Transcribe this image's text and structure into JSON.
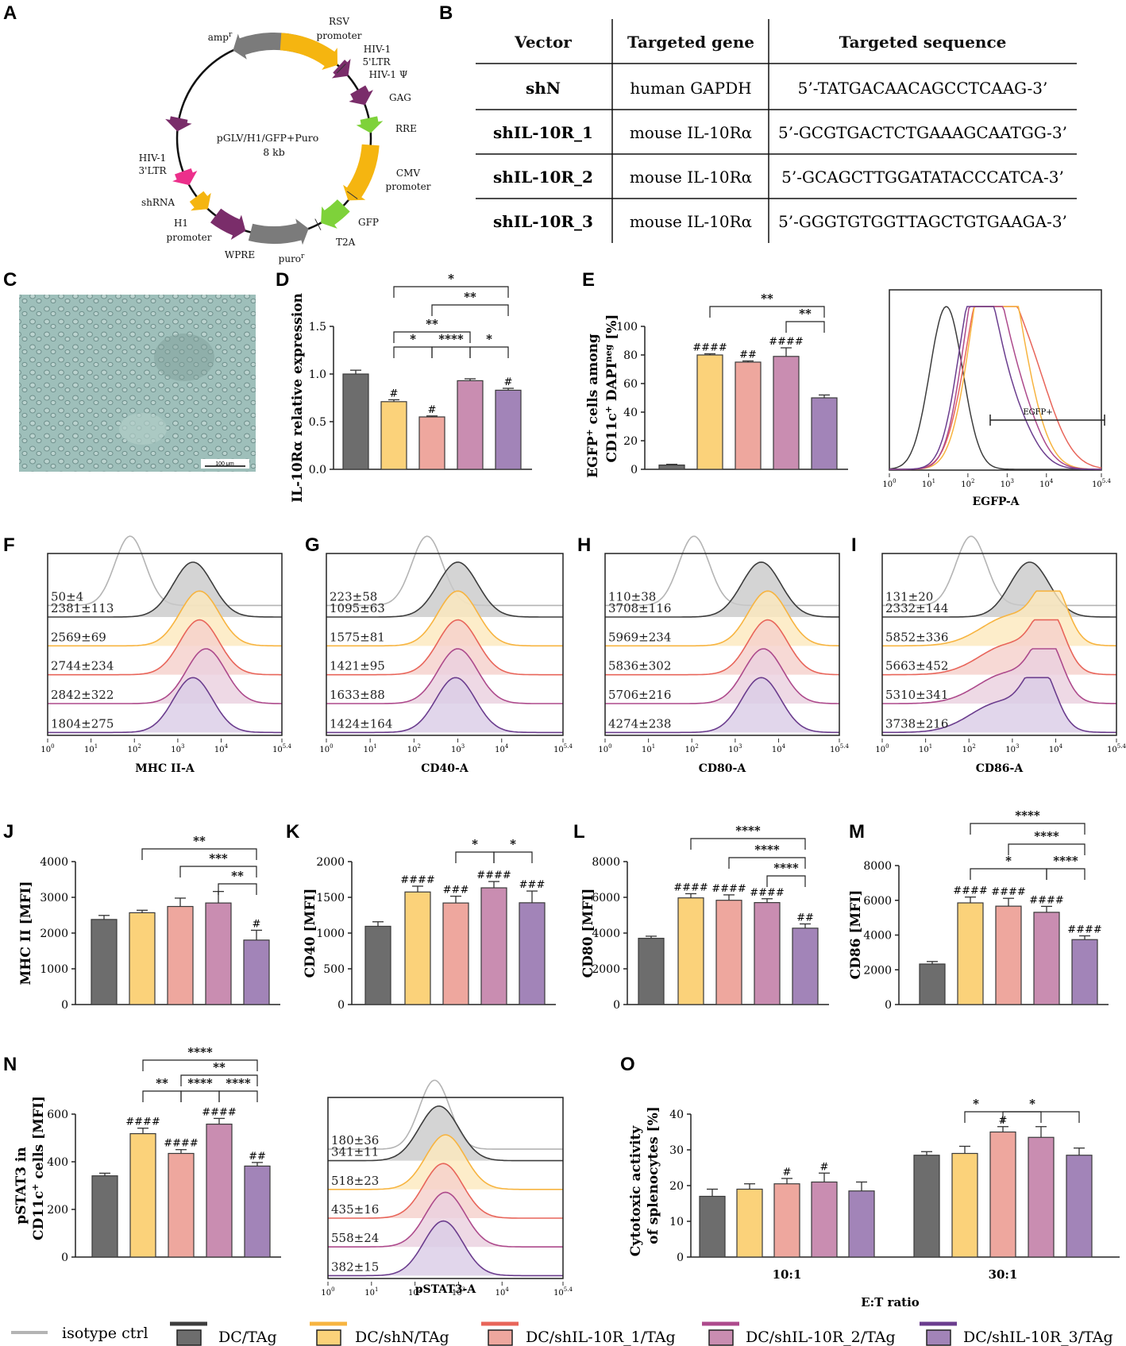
{
  "colors": {
    "g0": "#6d6d6d",
    "g1": "#fbd27a",
    "g2": "#eea79e",
    "g3": "#c98db1",
    "g4": "#a284b8",
    "l0": "#3d3d3d",
    "l1": "#f7b440",
    "l2": "#e8655a",
    "l3": "#ad4a8c",
    "l4": "#6b3d8e",
    "iso": "#b4b4b4"
  },
  "panel_letters": [
    "A",
    "B",
    "C",
    "D",
    "E",
    "F",
    "G",
    "H",
    "I",
    "J",
    "K",
    "L",
    "M",
    "N",
    "O"
  ],
  "plasmid": {
    "center_line1": "pGLV/H1/GFP+Puro",
    "center_line2": "8 kb",
    "features": [
      {
        "label": "amp",
        "sup": "r"
      },
      {
        "label": "RSV",
        "label2": "promoter"
      },
      {
        "label": "HIV-1",
        "label2": "5'LTR"
      },
      {
        "label": "HIV-1 Ψ"
      },
      {
        "label": "GAG"
      },
      {
        "label": "RRE"
      },
      {
        "label": "CMV",
        "label2": "promoter"
      },
      {
        "label": "GFP"
      },
      {
        "label": "T2A"
      },
      {
        "label": "puro",
        "sup": "r"
      },
      {
        "label": "WPRE"
      },
      {
        "label": "H1",
        "label2": "promoter"
      },
      {
        "label": "shRNA"
      },
      {
        "label": "HIV-1",
        "label2": "3'LTR"
      }
    ]
  },
  "table": {
    "headers": [
      "Vector",
      "Targeted gene",
      "Targeted sequence"
    ],
    "rows": [
      [
        "shN",
        "human GAPDH",
        "5’-TATGACAACAGCCTCAAG-3’"
      ],
      [
        "shIL-10R_1",
        "mouse IL-10Rα",
        "5’-GCGTGACTCTGAAAGCAATGG-3’"
      ],
      [
        "shIL-10R_2",
        "mouse IL-10Rα",
        "5’-GCAGCTTGGATATACCCATCA-3’"
      ],
      [
        "shIL-10R_3",
        "mouse IL-10Rα",
        "5’-GGGTGTGGTTAGCTGTGAAGA-3’"
      ]
    ]
  },
  "micrograph": {
    "scale_bar": "100 μm"
  },
  "flow_axis_ticks": [
    "10",
    "0",
    "10",
    "1",
    "10",
    "2",
    "10",
    "3",
    "10",
    "4",
    "10",
    "5.4"
  ],
  "egfp_gate": "EGFP+",
  "egfp_xlabel": "EGFP-A",
  "histograms": [
    {
      "xlabel": "MHC II-A",
      "labels": [
        "50±4",
        "2381±113",
        "2569±69",
        "2744±234",
        "2842±322",
        "1804±275"
      ]
    },
    {
      "xlabel": "CD40-A",
      "labels": [
        "223±58",
        "1095±63",
        "1575±81",
        "1421±95",
        "1633±88",
        "1424±164"
      ]
    },
    {
      "xlabel": "CD80-A",
      "labels": [
        "110±38",
        "3708±116",
        "5969±234",
        "5836±302",
        "5706±216",
        "4274±238"
      ]
    },
    {
      "xlabel": "CD86-A",
      "labels": [
        "131±20",
        "2332±144",
        "5852±336",
        "5663±452",
        "5310±341",
        "3738±216"
      ]
    },
    {
      "xlabel": "pSTAT3-A",
      "labels": [
        "180±36",
        "341±11",
        "518±23",
        "435±16",
        "558±24",
        "382±15"
      ]
    }
  ],
  "legend": {
    "items": [
      "isotype ctrl",
      "DC/TAg",
      "DC/shN/TAg",
      "DC/shIL-10R_1/TAg",
      "DC/shIL-10R_2/TAg",
      "DC/shIL-10R_3/TAg"
    ]
  },
  "chart_data": [
    {
      "panel": "D",
      "type": "bar",
      "ylabel": "IL-10Rα relative expression",
      "ylim": [
        0,
        1.5
      ],
      "ticks": [
        "0.0",
        "0.5",
        "1.0",
        "1.5"
      ],
      "categories": [
        "DC/TAg",
        "DC/shN/TAg",
        "DC/shIL-10R_1/TAg",
        "DC/shIL-10R_2/TAg",
        "DC/shIL-10R_3/TAg"
      ],
      "values": [
        1.0,
        0.71,
        0.55,
        0.93,
        0.83
      ],
      "errors": [
        0.04,
        0.02,
        0.01,
        0.02,
        0.02
      ],
      "marks": [
        "",
        "#",
        "#",
        "",
        "#"
      ],
      "brackets": [
        {
          "from": 1,
          "to": 4,
          "label": "*"
        },
        {
          "from": 2,
          "to": 4,
          "label": "**"
        },
        {
          "from": 1,
          "to": 3,
          "label": "**"
        },
        {
          "from": 1,
          "to": 2,
          "label": "*"
        },
        {
          "from": 2,
          "to": 3,
          "label": "****"
        },
        {
          "from": 3,
          "to": 4,
          "label": "*"
        }
      ]
    },
    {
      "panel": "E",
      "type": "bar",
      "ylabel": "EGFP+ cells among CD11c+ DAPIneg [%]",
      "ylim": [
        0,
        100
      ],
      "ticks": [
        "0",
        "20",
        "40",
        "60",
        "80",
        "100"
      ],
      "values": [
        3,
        80,
        75,
        79,
        50
      ],
      "errors": [
        0.5,
        0.8,
        0.8,
        6,
        2
      ],
      "marks": [
        "",
        "####",
        "##",
        "####",
        ""
      ],
      "brackets": [
        {
          "from": 1,
          "to": 4,
          "label": "**"
        },
        {
          "from": 3,
          "to": 4,
          "label": "**"
        }
      ]
    },
    {
      "panel": "J",
      "type": "bar",
      "ylabel": "MHC II [MFI]",
      "ylim": [
        0,
        4000
      ],
      "ticks": [
        "0",
        "1000",
        "2000",
        "3000",
        "4000"
      ],
      "values": [
        2381,
        2569,
        2744,
        2842,
        1804
      ],
      "errors": [
        113,
        69,
        234,
        322,
        275
      ],
      "marks": [
        "",
        "",
        "",
        "",
        "#"
      ],
      "brackets": [
        {
          "from": 1,
          "to": 4,
          "label": "**"
        },
        {
          "from": 2,
          "to": 4,
          "label": "***"
        },
        {
          "from": 3,
          "to": 4,
          "label": "**"
        }
      ]
    },
    {
      "panel": "K",
      "type": "bar",
      "ylabel": "CD40 [MFI]",
      "ylim": [
        0,
        2000
      ],
      "ticks": [
        "0",
        "500",
        "1000",
        "1500",
        "2000"
      ],
      "values": [
        1095,
        1575,
        1421,
        1633,
        1424
      ],
      "errors": [
        63,
        81,
        95,
        88,
        164
      ],
      "marks": [
        "",
        "####",
        "###",
        "####",
        "###"
      ],
      "brackets": [
        {
          "from": 2,
          "to": 3,
          "label": "*"
        },
        {
          "from": 3,
          "to": 4,
          "label": "*"
        }
      ]
    },
    {
      "panel": "L",
      "type": "bar",
      "ylabel": "CD80 [MFI]",
      "ylim": [
        0,
        8000
      ],
      "ticks": [
        "0",
        "2000",
        "4000",
        "6000",
        "8000"
      ],
      "values": [
        3708,
        5969,
        5836,
        5706,
        4274
      ],
      "errors": [
        116,
        234,
        302,
        216,
        238
      ],
      "marks": [
        "",
        "####",
        "####",
        "####",
        "##"
      ],
      "brackets": [
        {
          "from": 1,
          "to": 4,
          "label": "****"
        },
        {
          "from": 2,
          "to": 4,
          "label": "****"
        },
        {
          "from": 3,
          "to": 4,
          "label": "****"
        }
      ]
    },
    {
      "panel": "M",
      "type": "bar",
      "ylabel": "CD86 [MFI]",
      "ylim": [
        0,
        8000
      ],
      "ticks": [
        "0",
        "2000",
        "4000",
        "6000",
        "8000"
      ],
      "values": [
        2332,
        5852,
        5663,
        5310,
        3738
      ],
      "errors": [
        144,
        336,
        452,
        341,
        216
      ],
      "marks": [
        "",
        "####",
        "####",
        "####",
        "####"
      ],
      "brackets": [
        {
          "from": 1,
          "to": 4,
          "label": "****"
        },
        {
          "from": 2,
          "to": 4,
          "label": "****"
        },
        {
          "from": 1,
          "to": 3,
          "label": "*"
        },
        {
          "from": 3,
          "to": 4,
          "label": "****"
        }
      ]
    },
    {
      "panel": "N",
      "type": "bar",
      "ylabel": "pSTAT3 in CD11c+ cells [MFI]",
      "ylim": [
        0,
        600
      ],
      "ticks": [
        "0",
        "200",
        "400",
        "600"
      ],
      "values": [
        341,
        518,
        435,
        558,
        382
      ],
      "errors": [
        11,
        23,
        16,
        24,
        15
      ],
      "marks": [
        "",
        "####",
        "####",
        "####",
        "##"
      ],
      "brackets": [
        {
          "from": 1,
          "to": 4,
          "label": "****"
        },
        {
          "from": 2,
          "to": 4,
          "label": "**"
        },
        {
          "from": 1,
          "to": 2,
          "label": "**"
        },
        {
          "from": 2,
          "to": 3,
          "label": "****"
        },
        {
          "from": 3,
          "to": 4,
          "label": "****"
        }
      ]
    },
    {
      "panel": "O",
      "type": "grouped-bar",
      "ylabel": "Cytotoxic activity of splenocytes [%]",
      "xlabel": "E:T ratio",
      "ylim": [
        0,
        40
      ],
      "ticks": [
        "0",
        "10",
        "20",
        "30",
        "40"
      ],
      "groups": [
        "10:1",
        "30:1"
      ],
      "values": [
        [
          17,
          19,
          20.5,
          21,
          18.5
        ],
        [
          28.5,
          29,
          35,
          33.5,
          28.5
        ]
      ],
      "errors": [
        [
          2,
          1.5,
          1.5,
          2.5,
          2.5
        ],
        [
          1,
          2,
          1.5,
          3,
          2
        ]
      ],
      "marks": [
        [
          "",
          "",
          "#",
          "#",
          ""
        ],
        [
          "",
          "",
          "#",
          "",
          ""
        ]
      ],
      "brackets": [
        {
          "group": 1,
          "from": 1,
          "to": 3,
          "label": "*"
        },
        {
          "group": 1,
          "from": 2,
          "to": 4,
          "label": "*"
        }
      ]
    }
  ]
}
